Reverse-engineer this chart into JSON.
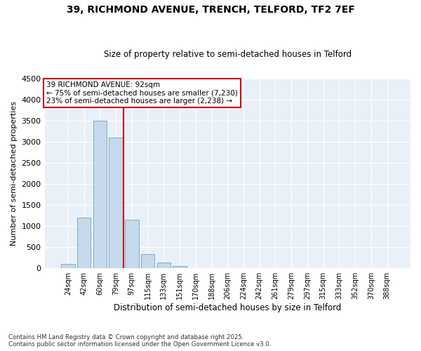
{
  "title_line1": "39, RICHMOND AVENUE, TRENCH, TELFORD, TF2 7EF",
  "title_line2": "Size of property relative to semi-detached houses in Telford",
  "xlabel": "Distribution of semi-detached houses by size in Telford",
  "ylabel": "Number of semi-detached properties",
  "categories": [
    "24sqm",
    "42sqm",
    "60sqm",
    "79sqm",
    "97sqm",
    "115sqm",
    "133sqm",
    "151sqm",
    "170sqm",
    "188sqm",
    "206sqm",
    "224sqm",
    "242sqm",
    "261sqm",
    "279sqm",
    "297sqm",
    "315sqm",
    "333sqm",
    "352sqm",
    "370sqm",
    "388sqm"
  ],
  "values": [
    100,
    1200,
    3500,
    3100,
    1150,
    330,
    130,
    55,
    10,
    5,
    0,
    0,
    0,
    0,
    0,
    0,
    0,
    0,
    0,
    0,
    0
  ],
  "bar_color": "#c6d9ec",
  "bar_edge_color": "#7aaec8",
  "property_line_x": 3.5,
  "annotation_text": "39 RICHMOND AVENUE: 92sqm\n← 75% of semi-detached houses are smaller (7,230)\n23% of semi-detached houses are larger (2,238) →",
  "annotation_box_color": "#ffffff",
  "annotation_box_edge": "#cc0000",
  "vline_color": "#cc0000",
  "ylim": [
    0,
    4500
  ],
  "yticks": [
    0,
    500,
    1000,
    1500,
    2000,
    2500,
    3000,
    3500,
    4000,
    4500
  ],
  "background_color": "#eaf0f8",
  "footer_line1": "Contains HM Land Registry data © Crown copyright and database right 2025.",
  "footer_line2": "Contains public sector information licensed under the Open Government Licence v3.0.",
  "fig_width": 6.0,
  "fig_height": 5.0,
  "dpi": 100
}
